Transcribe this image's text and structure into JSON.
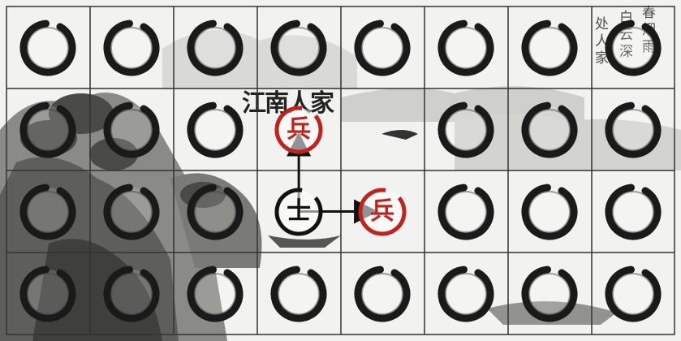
{
  "board": {
    "rows": 4,
    "cols": 8,
    "empty_cells": [
      [
        0,
        0
      ],
      [
        0,
        1
      ],
      [
        0,
        2
      ],
      [
        0,
        3
      ],
      [
        0,
        4
      ],
      [
        0,
        5
      ],
      [
        0,
        6
      ],
      [
        0,
        7
      ],
      [
        1,
        0
      ],
      [
        1,
        1
      ],
      [
        1,
        2
      ],
      [
        1,
        5
      ],
      [
        1,
        6
      ],
      [
        1,
        7
      ],
      [
        2,
        0
      ],
      [
        2,
        1
      ],
      [
        2,
        2
      ],
      [
        2,
        5
      ],
      [
        2,
        6
      ],
      [
        2,
        7
      ],
      [
        3,
        0
      ],
      [
        3,
        1
      ],
      [
        3,
        2
      ],
      [
        3,
        3
      ],
      [
        3,
        4
      ],
      [
        3,
        5
      ],
      [
        3,
        6
      ],
      [
        3,
        7
      ]
    ],
    "pieces": [
      {
        "id": "red-soldier-top",
        "row": 1,
        "col": 3,
        "glyph": "兵",
        "color": "#c0221e"
      },
      {
        "id": "black-piece",
        "row": 2,
        "col": 3,
        "glyph": "士",
        "color": "#111111"
      },
      {
        "id": "red-soldier-right",
        "row": 2,
        "col": 4,
        "glyph": "兵",
        "color": "#c0221e"
      }
    ],
    "moves": [
      {
        "from": [
          2,
          3
        ],
        "to": [
          1,
          3
        ]
      },
      {
        "from": [
          2,
          3
        ],
        "to": [
          2,
          4
        ]
      }
    ]
  },
  "painting": {
    "title": "江南人家",
    "poem_columns": [
      "春",
      "烟",
      "雨",
      "白",
      "云",
      "深",
      "处",
      "人",
      "家"
    ]
  },
  "colors": {
    "red": "#c0221e",
    "ink": "#111111",
    "grid": "#333333"
  }
}
